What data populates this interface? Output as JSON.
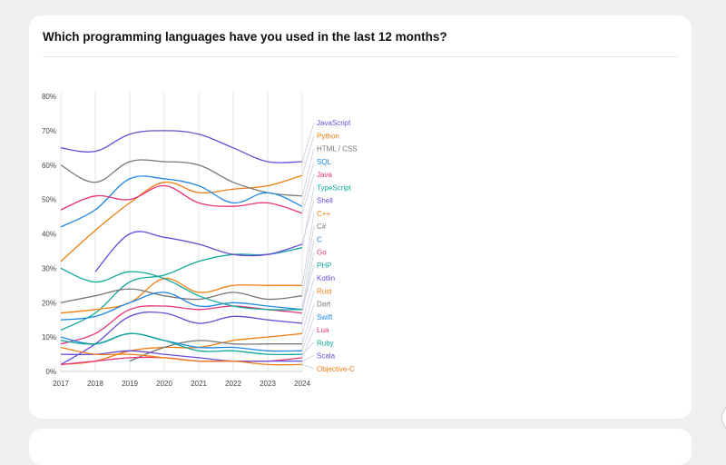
{
  "card": {
    "title": "Which programming languages have you used in the last 12 months?"
  },
  "scroll_button": {
    "icon": "chevron-icon",
    "glyph": "‹"
  },
  "chart_data": {
    "type": "line",
    "title": "Which programming languages have you used in the last 12 months?",
    "x": [
      2017,
      2018,
      2019,
      2020,
      2021,
      2022,
      2023,
      2024
    ],
    "ylim": [
      0,
      80
    ],
    "yticks": [
      "0%",
      "10%",
      "20%",
      "30%",
      "40%",
      "50%",
      "60%",
      "70%",
      "80%"
    ],
    "grid": "vertical",
    "legend": "right, labels in order of 2024 value",
    "series": [
      {
        "name": "JavaScript",
        "color": "#6a4bd8",
        "values": [
          65,
          64,
          69,
          70,
          69,
          65,
          61,
          61
        ]
      },
      {
        "name": "Python",
        "color": "#f07e14",
        "values": [
          32,
          41,
          49,
          55,
          52,
          53,
          54,
          57
        ]
      },
      {
        "name": "HTML / CSS",
        "color": "#777777",
        "values": [
          60,
          55,
          61,
          61,
          60,
          55,
          52,
          51
        ]
      },
      {
        "name": "SQL",
        "color": "#1e88e5",
        "values": [
          42,
          47,
          56,
          56,
          54,
          49,
          52,
          48
        ]
      },
      {
        "name": "Java",
        "color": "#e8317a",
        "values": [
          47,
          51,
          50,
          54,
          49,
          48,
          49,
          46
        ]
      },
      {
        "name": "TypeScript",
        "color": "#10a89a",
        "values": [
          12,
          17,
          26,
          28,
          32,
          34,
          34,
          36
        ]
      },
      {
        "name": "Shell",
        "color": "#6a4bd8",
        "values": [
          null,
          29,
          40,
          39,
          37,
          34,
          34,
          37
        ]
      },
      {
        "name": "C++",
        "color": "#f07e14",
        "values": [
          17,
          18,
          20,
          27,
          23,
          25,
          25,
          25
        ]
      },
      {
        "name": "C#",
        "color": "#777777",
        "values": [
          20,
          22,
          24,
          22,
          21,
          23,
          21,
          22
        ]
      },
      {
        "name": "C",
        "color": "#1e88e5",
        "values": [
          15,
          16,
          20,
          23,
          19,
          20,
          19,
          18
        ]
      },
      {
        "name": "Go",
        "color": "#e8317a",
        "values": [
          8,
          11,
          18,
          19,
          18,
          19,
          18,
          17
        ]
      },
      {
        "name": "PHP",
        "color": "#10a89a",
        "values": [
          30,
          26,
          29,
          27,
          22,
          19,
          18,
          18
        ]
      },
      {
        "name": "Kotlin",
        "color": "#6a4bd8",
        "values": [
          2,
          8,
          16,
          17,
          14,
          16,
          15,
          14
        ]
      },
      {
        "name": "Rust",
        "color": "#f07e14",
        "values": [
          2,
          3,
          6,
          7,
          7,
          9,
          10,
          11
        ]
      },
      {
        "name": "Dart",
        "color": "#777777",
        "values": [
          null,
          null,
          3,
          7,
          9,
          8,
          8,
          8
        ]
      },
      {
        "name": "Swift",
        "color": "#1e88e5",
        "values": [
          10,
          8,
          11,
          9,
          7,
          7,
          6,
          6
        ]
      },
      {
        "name": "Lua",
        "color": "#e8317a",
        "values": [
          2,
          3,
          4,
          4,
          3,
          3,
          3,
          4
        ]
      },
      {
        "name": "Ruby",
        "color": "#10a89a",
        "values": [
          9,
          8,
          11,
          9,
          6,
          6,
          5,
          5
        ]
      },
      {
        "name": "Scala",
        "color": "#6a4bd8",
        "values": [
          5,
          5,
          6,
          5,
          4,
          3,
          3,
          3
        ]
      },
      {
        "name": "Objective-C",
        "color": "#f07e14",
        "values": [
          7,
          5,
          5,
          4,
          3,
          3,
          2,
          2
        ]
      }
    ]
  }
}
